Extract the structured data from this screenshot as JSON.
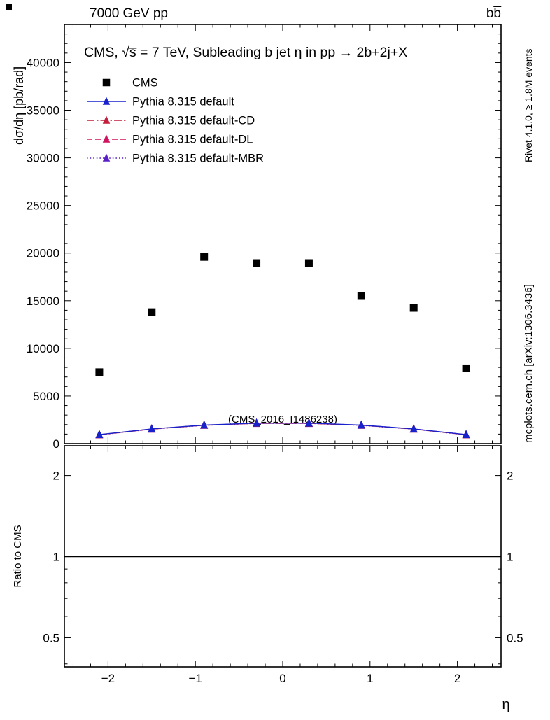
{
  "header": {
    "beam": "7000 GeV pp",
    "process": "bb̅"
  },
  "watermark": "(CMS_2016_I1486238)",
  "side_labels": {
    "top_right": "Rivet 4.1.0, ≥ 1.8M events",
    "bottom_right": "mcplots.cern.ch [arXiv:1306.3436]"
  },
  "chart_data": {
    "type": "scatter",
    "title": "CMS, √s̅ = 7 TeV, Subleading b jet η in pp →  2b+2j+X",
    "xlabel": "η",
    "ylabel": "dσ/dη [pb/rad]",
    "xlim": [
      -2.5,
      2.5
    ],
    "ylim": [
      0,
      44000
    ],
    "xticks": [
      -2,
      -1,
      0,
      1,
      2
    ],
    "x_minor_step": 0.2,
    "yticks": [
      0,
      5000,
      10000,
      15000,
      20000,
      25000,
      30000,
      35000,
      40000
    ],
    "y_minor_step": 1000,
    "grid": false,
    "legend_position": "top-left",
    "x": [
      -2.1,
      -1.5,
      -0.9,
      -0.3,
      0.3,
      0.9,
      1.5,
      2.1
    ],
    "series": [
      {
        "name": "CMS",
        "marker": "square",
        "line": "none",
        "color": "#000000",
        "values": [
          7500,
          13800,
          19600,
          18950,
          18950,
          15500,
          14250,
          7900
        ]
      },
      {
        "name": "Pythia 8.315 default",
        "marker": "triangle",
        "line": "solid",
        "color": "#1822cc",
        "values": [
          950,
          1550,
          1950,
          2150,
          2150,
          1950,
          1550,
          950
        ]
      },
      {
        "name": "Pythia 8.315 default-CD",
        "marker": "triangle",
        "line": "dashdot",
        "color": "#c41e3a",
        "values": [
          930,
          1530,
          1930,
          2130,
          2130,
          1930,
          1530,
          930
        ]
      },
      {
        "name": "Pythia 8.315 default-DL",
        "marker": "triangle",
        "line": "dashed",
        "color": "#d1125f",
        "values": [
          940,
          1540,
          1940,
          2140,
          2140,
          1940,
          1540,
          940
        ]
      },
      {
        "name": "Pythia 8.315 default-MBR",
        "marker": "triangle",
        "line": "dotted",
        "color": "#5a1ec8",
        "values": [
          920,
          1520,
          1920,
          2120,
          2120,
          1920,
          1520,
          920
        ]
      }
    ],
    "ratio": {
      "ylabel": "Ratio to CMS",
      "yscale": "log",
      "ylim": [
        0.39,
        2.58
      ],
      "yticks": [
        0.5,
        1,
        2
      ],
      "minor_ticks": [
        0.4,
        0.6,
        0.7,
        0.8,
        0.9
      ],
      "reference": 1
    }
  }
}
